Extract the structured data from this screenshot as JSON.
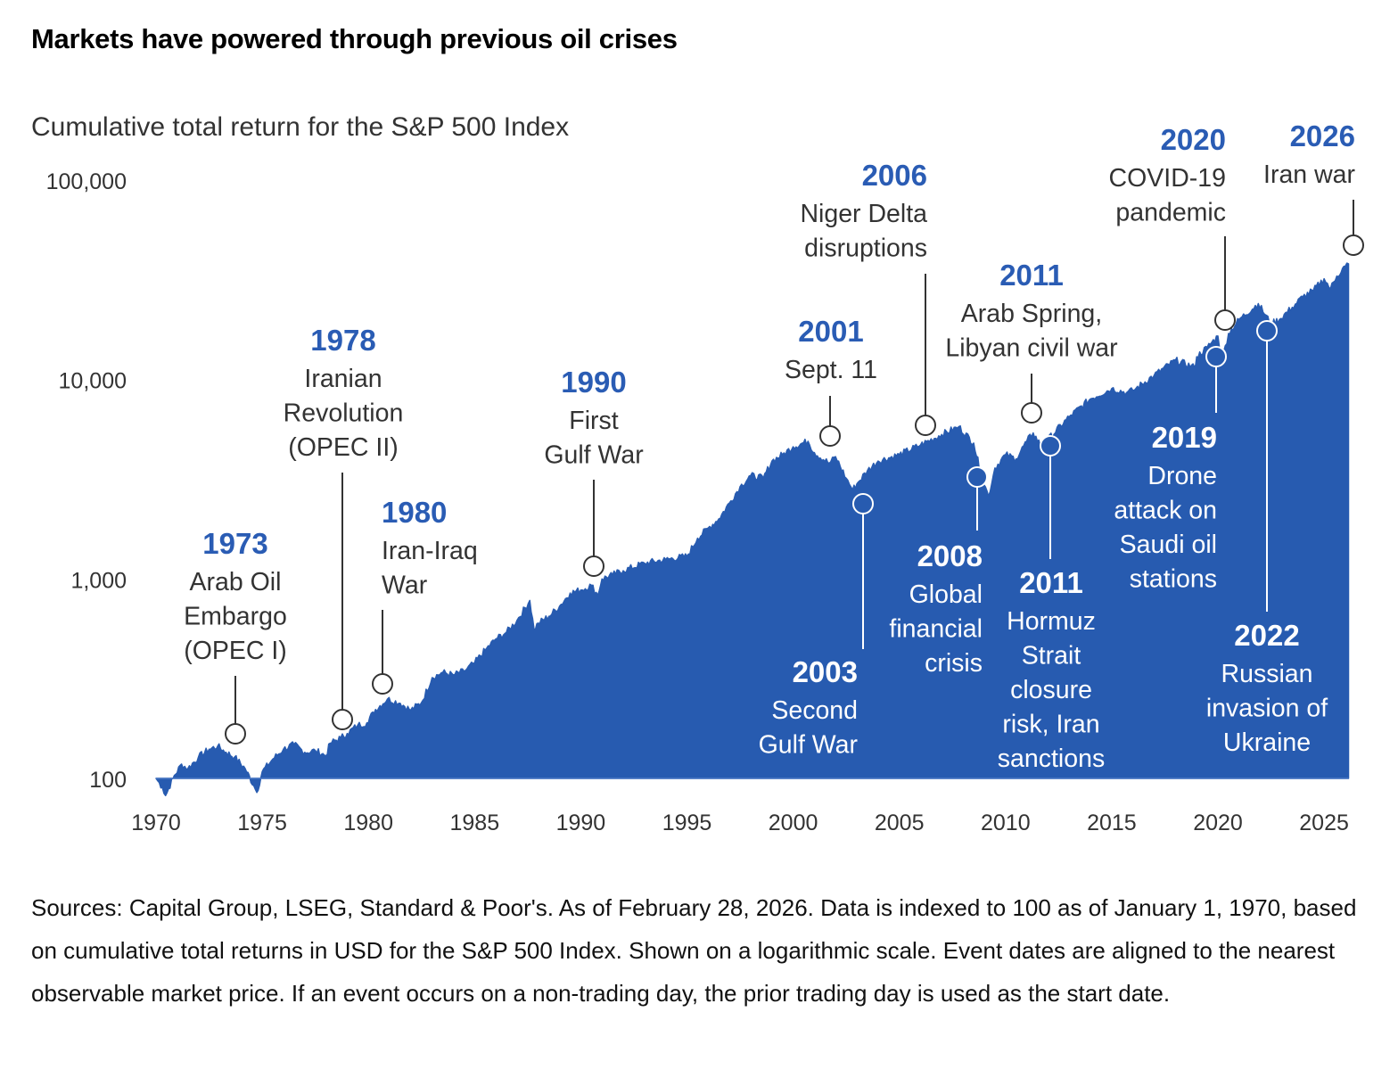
{
  "title": "Markets have powered through previous oil crises",
  "subtitle": "Cumulative total return for the S&P 500 Index",
  "footnote": "Sources: Capital Group, LSEG, Standard & Poor's. As of February 28, 2026. Data is indexed to 100 as of January 1, 1970, based on cumulative total returns in USD for the S&P 500 Index. Shown on a logarithmic scale. Event dates are aligned to the nearest observable market price. If an event occurs on a non-trading day, the prior trading day is used as the start date.",
  "colors": {
    "area": "#275BB0",
    "accent": "#2A5CB4",
    "text": "#333333",
    "marker": "#333333"
  },
  "chart_data": {
    "type": "area",
    "title": "Markets have powered through previous oil crises",
    "subtitle": "Cumulative total return for the S&P 500 Index",
    "xlabel": "",
    "ylabel": "",
    "yscale": "log",
    "ylim": [
      100,
      100000
    ],
    "xlim": [
      1970,
      2026.2
    ],
    "y_ticks": [
      100,
      1000,
      10000,
      100000
    ],
    "y_tick_labels": [
      "100",
      "1,000",
      "10,000",
      "100,000"
    ],
    "x_ticks": [
      1970,
      1975,
      1980,
      1985,
      1990,
      1995,
      2000,
      2005,
      2010,
      2015,
      2020,
      2025
    ],
    "x_tick_labels": [
      "1970",
      "1975",
      "1980",
      "1985",
      "1990",
      "1995",
      "2000",
      "2005",
      "2010",
      "2015",
      "2020",
      "2025"
    ],
    "grid": false,
    "series": [
      {
        "name": "S&P 500 cumulative total return (indexed to 100)",
        "x": [
          1970.0,
          1970.3,
          1970.45,
          1970.8,
          1971.2,
          1971.5,
          1972.0,
          1972.5,
          1972.9,
          1973.3,
          1973.7,
          1974.2,
          1974.6,
          1974.75,
          1975.0,
          1975.5,
          1976.0,
          1976.5,
          1977.0,
          1977.5,
          1978.0,
          1978.2,
          1978.7,
          1979.0,
          1979.5,
          1980.0,
          1980.2,
          1980.9,
          1981.5,
          1982.0,
          1982.5,
          1983.0,
          1983.5,
          1984.0,
          1984.5,
          1985.0,
          1985.5,
          1986.0,
          1986.5,
          1987.0,
          1987.6,
          1987.8,
          1988.0,
          1988.5,
          1989.0,
          1989.5,
          1990.0,
          1990.5,
          1990.8,
          1991.0,
          1991.5,
          1992.0,
          1993.0,
          1994.0,
          1995.0,
          1995.5,
          1996.0,
          1996.5,
          1997.0,
          1997.5,
          1998.0,
          1998.6,
          1999.0,
          1999.5,
          2000.0,
          2000.7,
          2001.0,
          2001.7,
          2002.0,
          2002.5,
          2002.8,
          2003.0,
          2003.5,
          2004.0,
          2005.0,
          2006.0,
          2007.0,
          2007.8,
          2008.5,
          2008.9,
          2009.2,
          2009.5,
          2010.0,
          2010.5,
          2011.0,
          2011.3,
          2011.7,
          2012.0,
          2013.0,
          2014.0,
          2015.0,
          2015.7,
          2016.0,
          2017.0,
          2018.0,
          2018.9,
          2019.0,
          2019.5,
          2020.0,
          2020.2,
          2020.5,
          2021.0,
          2021.9,
          2022.5,
          2022.9,
          2023.5,
          2024.0,
          2024.5,
          2025.0,
          2025.3,
          2025.6,
          2026.0,
          2026.15
        ],
        "values": [
          100,
          90,
          82,
          100,
          118,
          112,
          128,
          140,
          145,
          135,
          128,
          112,
          92,
          85,
          108,
          125,
          140,
          148,
          135,
          138,
          130,
          150,
          160,
          168,
          185,
          190,
          215,
          250,
          238,
          220,
          240,
          320,
          340,
          330,
          345,
          380,
          440,
          500,
          540,
          620,
          780,
          560,
          600,
          650,
          730,
          850,
          880,
          930,
          830,
          1000,
          1050,
          1100,
          1200,
          1250,
          1300,
          1600,
          1800,
          2000,
          2400,
          2900,
          3300,
          3200,
          3900,
          4200,
          4600,
          4900,
          4300,
          3800,
          4100,
          3200,
          2800,
          3000,
          3500,
          3900,
          4200,
          4700,
          5300,
          5800,
          4800,
          3200,
          2600,
          3600,
          4200,
          4000,
          4900,
          5400,
          4600,
          5000,
          6500,
          8000,
          9000,
          8600,
          8800,
          10500,
          12500,
          11500,
          13000,
          14500,
          16500,
          12500,
          17000,
          20000,
          24000,
          19000,
          20000,
          23000,
          26000,
          28000,
          32000,
          28500,
          33000,
          37000,
          38000
        ]
      }
    ],
    "annotations": [
      {
        "year": "1973",
        "text": [
          "Arab Oil",
          "Embargo",
          "(OPEC I)"
        ],
        "x": 1973.75,
        "y": 160,
        "label_pos": "above"
      },
      {
        "year": "1978",
        "text": [
          "Iranian",
          "Revolution",
          "(OPEC II)"
        ],
        "x": 1978.75,
        "y": 195,
        "label_pos": "above"
      },
      {
        "year": "1980",
        "text": [
          "Iran-Iraq",
          "War"
        ],
        "x": 1980.7,
        "y": 290,
        "label_pos": "above"
      },
      {
        "year": "1990",
        "text": [
          "First",
          "Gulf War"
        ],
        "x": 1990.5,
        "y": 1120,
        "label_pos": "above"
      },
      {
        "year": "2001",
        "text": [
          "Sept. 11"
        ],
        "x": 2001.7,
        "y": 5200,
        "label_pos": "above"
      },
      {
        "year": "2003",
        "text": [
          "Second",
          "Gulf War"
        ],
        "x": 2003.2,
        "y": 2400,
        "label_pos": "below"
      },
      {
        "year": "2006",
        "text": [
          "Niger Delta",
          "disruptions"
        ],
        "x": 2006.2,
        "y": 5900,
        "label_pos": "above"
      },
      {
        "year": "2008",
        "text": [
          "Global",
          "financial",
          "crisis"
        ],
        "x": 2008.7,
        "y": 3200,
        "label_pos": "below"
      },
      {
        "year": "2011",
        "text": [
          "Arab Spring,",
          "Libyan civil war"
        ],
        "x": 2011.1,
        "y": 6700,
        "label_pos": "above"
      },
      {
        "year": "2011",
        "text": [
          "Hormuz",
          "Strait",
          "closure",
          "risk, Iran",
          "sanctions"
        ],
        "x": 2012.0,
        "y": 4500,
        "label_pos": "below"
      },
      {
        "year": "2019",
        "text": [
          "Drone",
          "attack on",
          "Saudi oil",
          "stations"
        ],
        "x": 2019.8,
        "y": 12500,
        "label_pos": "below"
      },
      {
        "year": "2020",
        "text": [
          "COVID-19",
          "pandemic"
        ],
        "x": 2020.2,
        "y": 19500,
        "label_pos": "above"
      },
      {
        "year": "2022",
        "text": [
          "Russian",
          "invasion of",
          "Ukraine"
        ],
        "x": 2022.2,
        "y": 17000,
        "label_pos": "below"
      },
      {
        "year": "2026",
        "text": [
          "Iran war"
        ],
        "x": 2026.0,
        "y": 46000,
        "label_pos": "above"
      }
    ]
  }
}
